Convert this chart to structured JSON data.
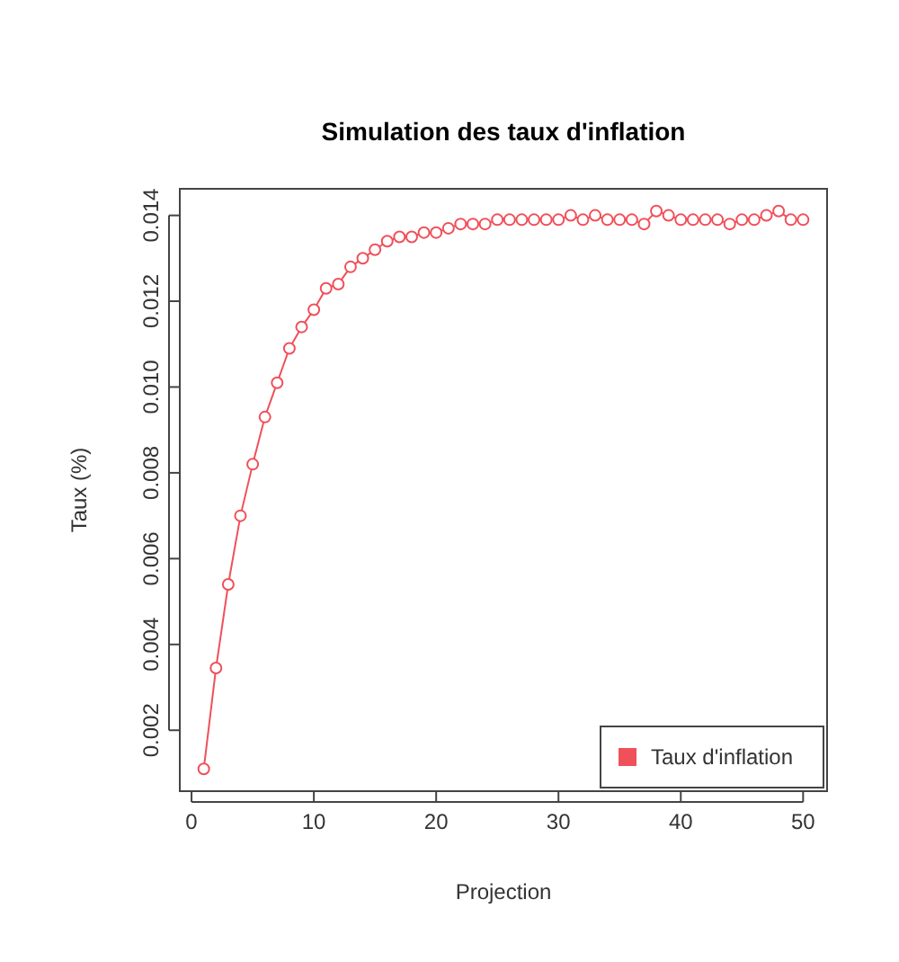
{
  "chart_data": {
    "type": "line",
    "title": "Simulation des taux d'inflation",
    "xlabel": "Projection",
    "ylabel": "Taux (%)",
    "x": [
      1,
      2,
      3,
      4,
      5,
      6,
      7,
      8,
      9,
      10,
      11,
      12,
      13,
      14,
      15,
      16,
      17,
      18,
      19,
      20,
      21,
      22,
      23,
      24,
      25,
      26,
      27,
      28,
      29,
      30,
      31,
      32,
      33,
      34,
      35,
      36,
      37,
      38,
      39,
      40,
      41,
      42,
      43,
      44,
      45,
      46,
      47,
      48,
      49,
      50
    ],
    "series": [
      {
        "name": "Taux d'inflation",
        "color": "#f0505a",
        "values": [
          0.0011,
          0.00345,
          0.0054,
          0.007,
          0.0082,
          0.0093,
          0.0101,
          0.0109,
          0.0114,
          0.0118,
          0.0123,
          0.0124,
          0.0128,
          0.013,
          0.0132,
          0.0134,
          0.0135,
          0.0135,
          0.0136,
          0.0136,
          0.0137,
          0.0138,
          0.0138,
          0.0138,
          0.0139,
          0.0139,
          0.0139,
          0.0139,
          0.0139,
          0.0139,
          0.014,
          0.0139,
          0.014,
          0.0139,
          0.0139,
          0.0139,
          0.0138,
          0.0141,
          0.014,
          0.0139,
          0.0139,
          0.0139,
          0.0139,
          0.0138,
          0.0139,
          0.0139,
          0.014,
          0.0141,
          0.0139,
          0.0139
        ]
      }
    ],
    "xlim": [
      -0.96,
      51.96
    ],
    "ylim": [
      0.00058,
      0.01462
    ],
    "xticks": [
      0,
      10,
      20,
      30,
      40,
      50
    ],
    "yticks": [
      {
        "value": 0.002,
        "label": "0.002"
      },
      {
        "value": 0.004,
        "label": "0.004"
      },
      {
        "value": 0.006,
        "label": "0.006"
      },
      {
        "value": 0.008,
        "label": "0.008"
      },
      {
        "value": 0.01,
        "label": "0.010"
      },
      {
        "value": 0.012,
        "label": "0.012"
      },
      {
        "value": 0.014,
        "label": "0.014"
      }
    ],
    "marker": "circle",
    "line_style": "solid",
    "legend": "bottom right",
    "grid": false
  }
}
